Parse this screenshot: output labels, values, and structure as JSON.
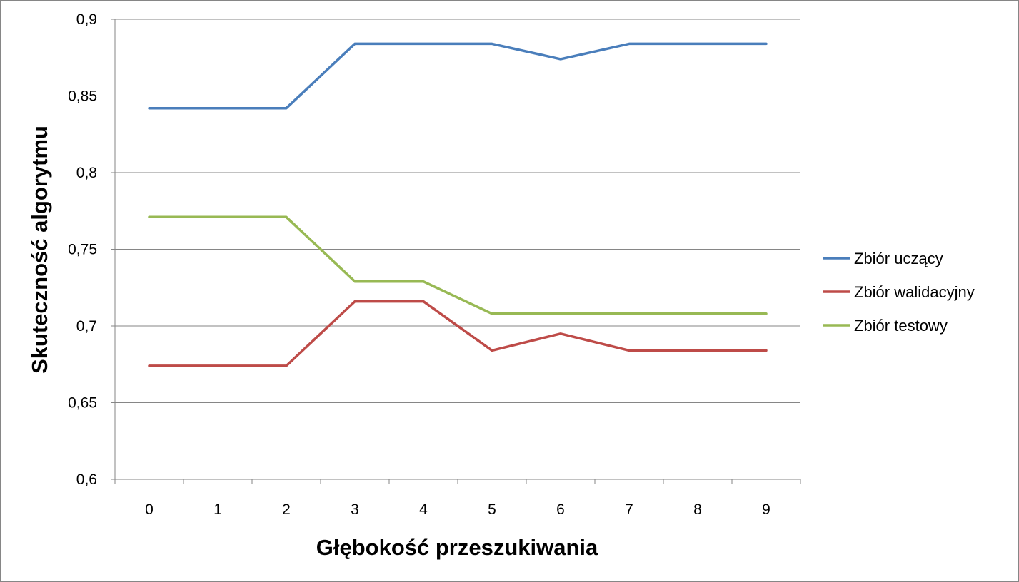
{
  "chart_data": {
    "type": "line",
    "title": "",
    "xlabel": "Głębokość przeszukiwania",
    "ylabel": "Skuteczność algorytmu",
    "x": [
      0,
      1,
      2,
      3,
      4,
      5,
      6,
      7,
      8,
      9
    ],
    "x_tick_labels": [
      "0",
      "1",
      "2",
      "3",
      "4",
      "5",
      "6",
      "7",
      "8",
      "9"
    ],
    "ylim": [
      0.6,
      0.9
    ],
    "y_ticks": [
      0.6,
      0.65,
      0.7,
      0.75,
      0.8,
      0.85,
      0.9
    ],
    "y_tick_labels": [
      "0,6",
      "0,65",
      "0,7",
      "0,75",
      "0,8",
      "0,85",
      "0,9"
    ],
    "grid": true,
    "legend_position": "right",
    "series": [
      {
        "name": "Zbiór uczący",
        "color": "#4a7ebb",
        "values": [
          0.842,
          0.842,
          0.842,
          0.884,
          0.884,
          0.884,
          0.874,
          0.884,
          0.884,
          0.884
        ]
      },
      {
        "name": "Zbiór walidacyjny",
        "color": "#be4b48",
        "values": [
          0.674,
          0.674,
          0.674,
          0.716,
          0.716,
          0.684,
          0.695,
          0.684,
          0.684,
          0.684
        ]
      },
      {
        "name": "Zbiór testowy",
        "color": "#98b954",
        "values": [
          0.771,
          0.771,
          0.771,
          0.729,
          0.729,
          0.708,
          0.708,
          0.708,
          0.708,
          0.708
        ]
      }
    ]
  }
}
